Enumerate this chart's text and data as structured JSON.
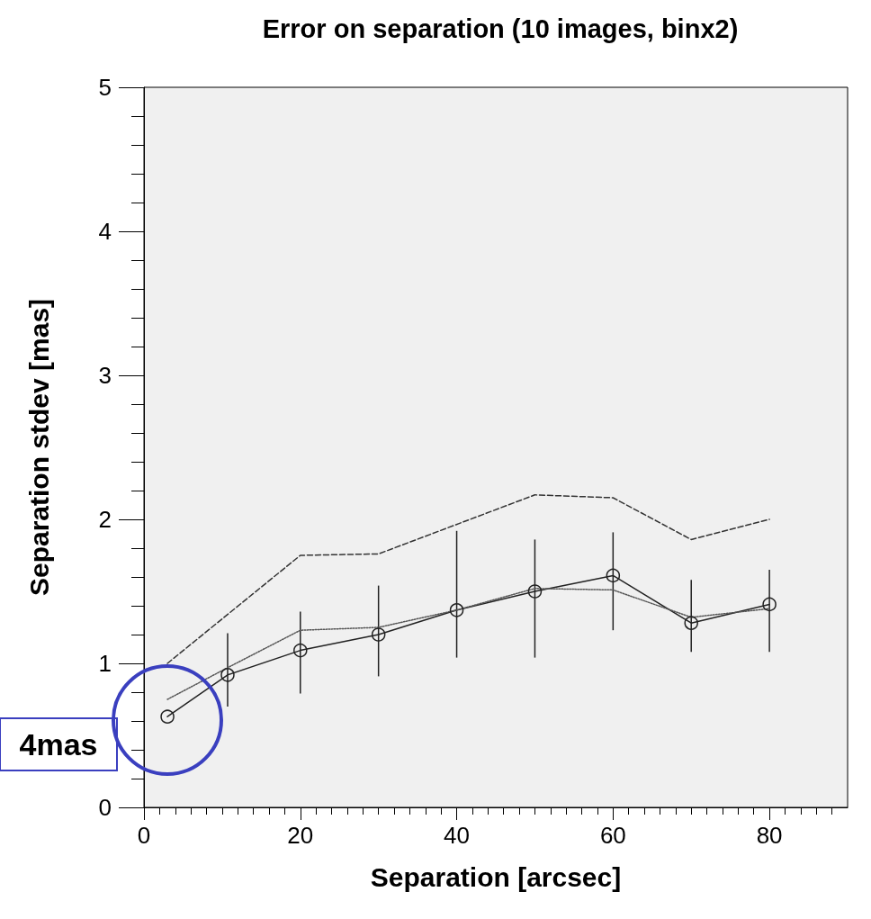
{
  "chart_data": {
    "type": "line",
    "title": "Error on separation (10 images, binx2)",
    "xlabel": "Separation [arcsec]",
    "ylabel": "Separation stdev [mas]",
    "xlim": [
      0,
      90
    ],
    "xticks": [
      0,
      20,
      40,
      60,
      80
    ],
    "ylim": [
      0,
      5
    ],
    "yticks": [
      0,
      1,
      2,
      3,
      4,
      5
    ],
    "grid": false,
    "series": [
      {
        "color": "#222222",
        "marker": "circle",
        "line_style": "solid",
        "x": [
          3,
          10.7,
          20,
          30,
          40,
          50,
          60,
          70,
          80
        ],
        "values": [
          0.63,
          0.92,
          1.09,
          1.2,
          1.37,
          1.5,
          1.61,
          1.28,
          1.41
        ],
        "errors": [
          null,
          [
            0.7,
            1.21
          ],
          [
            0.79,
            1.36
          ],
          [
            0.91,
            1.54
          ],
          [
            1.04,
            1.92
          ],
          [
            1.04,
            1.86
          ],
          [
            1.23,
            1.91
          ],
          [
            1.08,
            1.58
          ],
          [
            1.08,
            1.65
          ]
        ]
      },
      {
        "color": "#555555",
        "marker": "none",
        "line_style": "dotted",
        "x": [
          3,
          10.7,
          20,
          30,
          40,
          50,
          60,
          70,
          80
        ],
        "values": [
          0.75,
          0.97,
          1.23,
          1.25,
          1.37,
          1.52,
          1.51,
          1.32,
          1.38
        ]
      },
      {
        "color": "#333333",
        "marker": "none",
        "line_style": "dashed",
        "x": [
          3,
          20,
          30,
          50,
          60,
          70,
          80
        ],
        "values": [
          1.0,
          1.75,
          1.76,
          2.17,
          2.15,
          1.86,
          2.0
        ]
      }
    ],
    "annotations": [
      {
        "text": "4mas",
        "x": 3,
        "y": 0.63
      }
    ]
  }
}
